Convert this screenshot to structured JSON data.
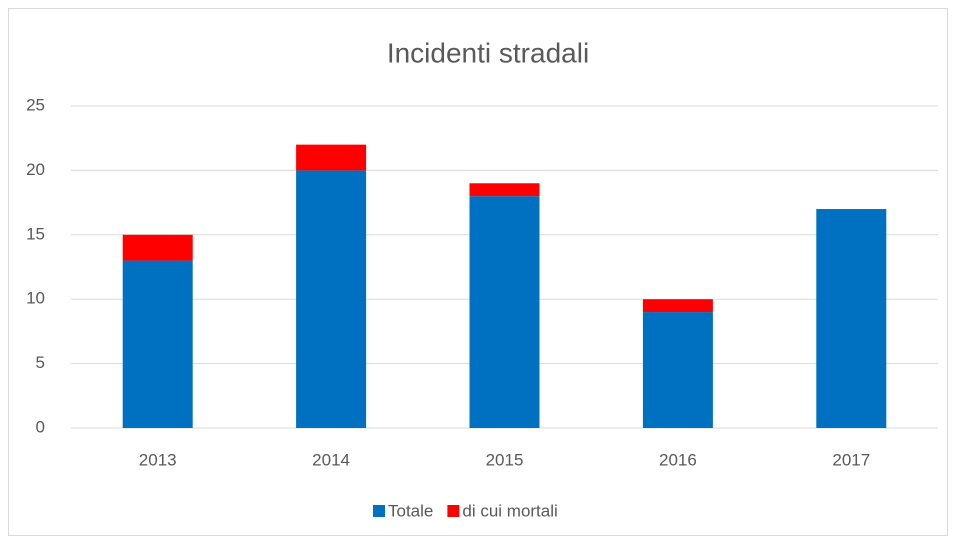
{
  "chart_data": {
    "type": "stacked_bar",
    "title": "Incidenti stradali",
    "categories": [
      "2013",
      "2014",
      "2015",
      "2016",
      "2017"
    ],
    "series": [
      {
        "name": "Totale",
        "color": "#0070c0",
        "values": [
          13,
          20,
          18,
          9,
          17
        ]
      },
      {
        "name": "di cui mortali",
        "color": "#ff0000",
        "values": [
          2,
          2,
          1,
          1,
          0
        ]
      }
    ],
    "ylim": [
      0,
      25
    ],
    "yticks": [
      0,
      5,
      10,
      15,
      20,
      25
    ],
    "grid": true,
    "legend": "bottom"
  }
}
